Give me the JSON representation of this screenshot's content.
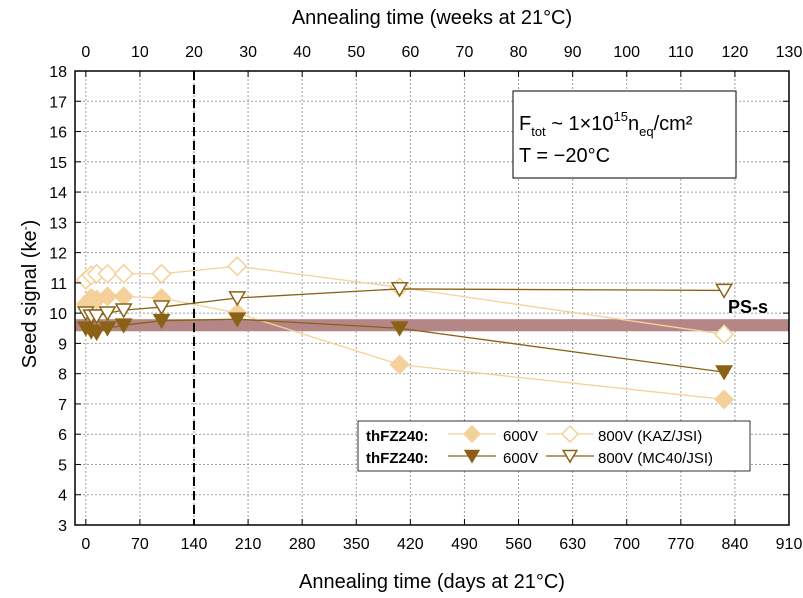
{
  "chart_data": {
    "type": "line",
    "xlabel": "Annealing time (days at 21°C)",
    "x2label": "Annealing time (weeks at 21°C)",
    "ylabel": "Seed signal (ke⁻)",
    "xlim": [
      -14,
      910
    ],
    "ylim": [
      3,
      18
    ],
    "x_ticks": [
      0,
      70,
      140,
      210,
      280,
      350,
      420,
      490,
      560,
      630,
      700,
      770,
      840,
      910
    ],
    "x2_ticks": [
      0,
      10,
      20,
      30,
      40,
      50,
      60,
      70,
      80,
      90,
      100,
      110,
      120,
      130
    ],
    "y_ticks": [
      3,
      4,
      5,
      6,
      7,
      8,
      9,
      10,
      11,
      12,
      13,
      14,
      15,
      16,
      17,
      18
    ],
    "grid": true,
    "vertical_line_days": 140,
    "band": {
      "label": "PS-s",
      "ymin": 9.4,
      "ymax": 9.8,
      "color": "#b08080",
      "label_color": "#7a1f2b"
    },
    "annotation": {
      "line1_main": "F",
      "line1_sub1": "tot",
      "line1_mid": " ~ 1×10",
      "line1_sup": "15",
      "line1_n": "n",
      "line1_sub2": "eq",
      "line1_end": "/cm²",
      "line2": "T = −20°C"
    },
    "legend": {
      "rows": [
        {
          "group": "thFZ240:",
          "group_color": "#f4d19a",
          "label_a": "600V",
          "label_b": "800V (KAZ/JSI)"
        },
        {
          "group": "thFZ240:",
          "group_color": "#8b6215",
          "label_a": "600V",
          "label_b": "800V (MC40/JSI)"
        }
      ],
      "position": "lower-right"
    },
    "series": [
      {
        "name": "thFZ240: 600V (KAZ/JSI)",
        "marker": "diamond",
        "filled": true,
        "color": "#f4d19a",
        "x": [
          0,
          7,
          14,
          28,
          49,
          98,
          196,
          406,
          826
        ],
        "y": [
          10.3,
          10.5,
          10.45,
          10.55,
          10.55,
          10.5,
          10.0,
          8.3,
          7.15
        ]
      },
      {
        "name": "thFZ240: 800V (KAZ/JSI)",
        "marker": "diamond",
        "filled": false,
        "color": "#f4d19a",
        "x": [
          0,
          7,
          14,
          28,
          49,
          98,
          196,
          406,
          826
        ],
        "y": [
          11.1,
          11.25,
          11.3,
          11.3,
          11.3,
          11.3,
          11.55,
          10.85,
          9.3
        ]
      },
      {
        "name": "thFZ240: 600V (MC40/JSI)",
        "marker": "triangle-down",
        "filled": true,
        "color": "#8b6215",
        "x": [
          0,
          7,
          14,
          28,
          49,
          98,
          196,
          406,
          826
        ],
        "y": [
          9.5,
          9.4,
          9.35,
          9.5,
          9.6,
          9.75,
          9.8,
          9.5,
          8.05
        ]
      },
      {
        "name": "thFZ240: 800V (MC40/JSI)",
        "marker": "triangle-down",
        "filled": false,
        "color": "#8b6215",
        "x": [
          0,
          7,
          14,
          28,
          49,
          98,
          196,
          406,
          826
        ],
        "y": [
          10.0,
          9.9,
          9.9,
          10.0,
          10.1,
          10.2,
          10.5,
          10.8,
          10.75
        ]
      }
    ]
  }
}
